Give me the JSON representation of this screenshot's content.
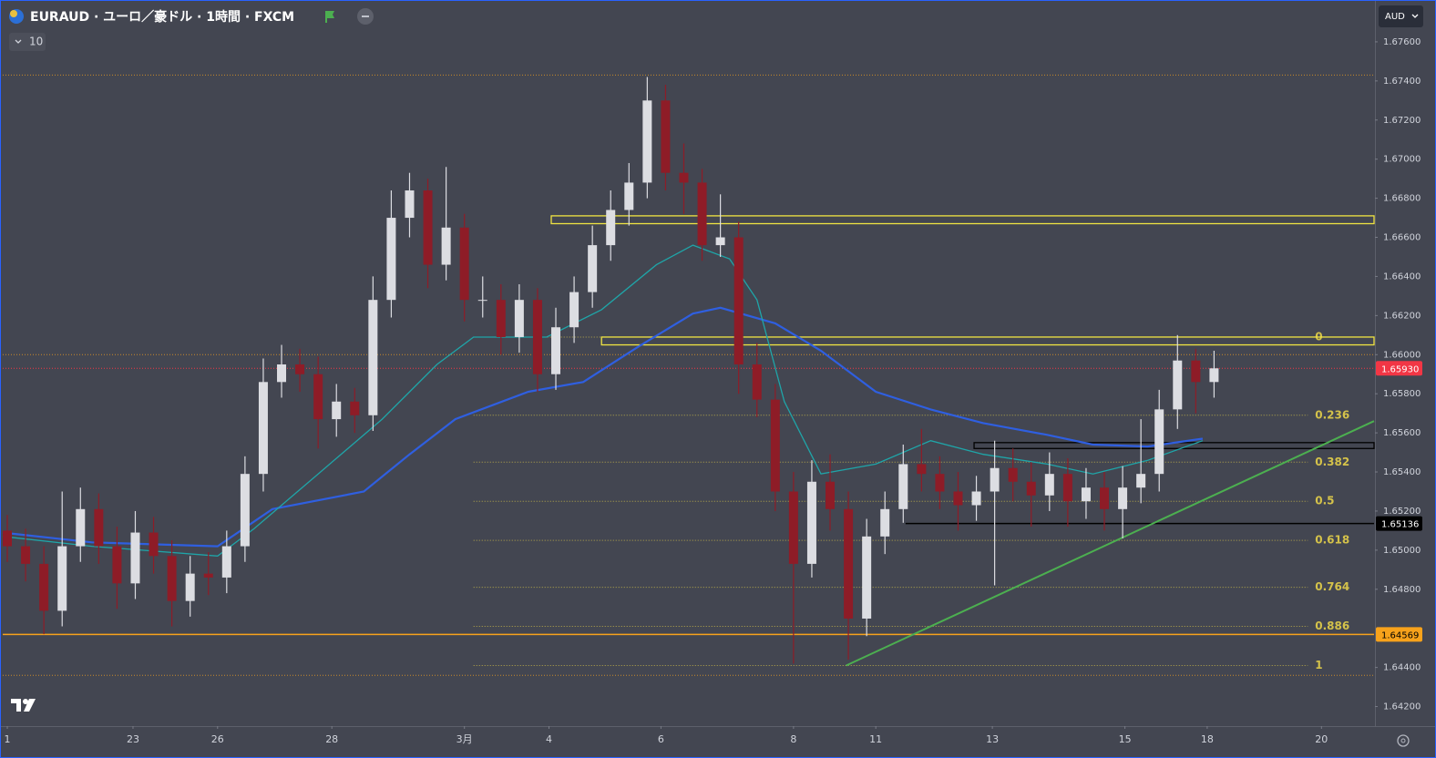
{
  "header": {
    "title": "EURAUD · ユーロ／豪ドル · 1時間 · FXCM",
    "indicator_count": "10",
    "currency": "AUD"
  },
  "chart_data": {
    "type": "candlestick",
    "xlim": [
      0,
      600
    ],
    "ylim": [
      1.641,
      1.678
    ],
    "xticks": [
      {
        "value": 2,
        "label": "1"
      },
      {
        "value": 57,
        "label": "23"
      },
      {
        "value": 94,
        "label": "26"
      },
      {
        "value": 144,
        "label": "28"
      },
      {
        "value": 202,
        "label": "3月"
      },
      {
        "value": 239,
        "label": "4"
      },
      {
        "value": 288,
        "label": "6"
      },
      {
        "value": 346,
        "label": "8"
      },
      {
        "value": 382,
        "label": "11"
      },
      {
        "value": 433,
        "label": "13"
      },
      {
        "value": 491,
        "label": "15"
      },
      {
        "value": 527,
        "label": "18"
      },
      {
        "value": 577,
        "label": "20"
      }
    ],
    "yticks": [
      {
        "value": 1.642,
        "label": "1.64200"
      },
      {
        "value": 1.644,
        "label": "1.64400"
      },
      {
        "value": 1.648,
        "label": "1.64800"
      },
      {
        "value": 1.65,
        "label": "1.65000"
      },
      {
        "value": 1.652,
        "label": "1.65200"
      },
      {
        "value": 1.654,
        "label": "1.65400"
      },
      {
        "value": 1.656,
        "label": "1.65600"
      },
      {
        "value": 1.658,
        "label": "1.65800"
      },
      {
        "value": 1.66,
        "label": "1.66000"
      },
      {
        "value": 1.662,
        "label": "1.66200"
      },
      {
        "value": 1.664,
        "label": "1.66400"
      },
      {
        "value": 1.666,
        "label": "1.66600"
      },
      {
        "value": 1.668,
        "label": "1.66800"
      },
      {
        "value": 1.67,
        "label": "1.67000"
      },
      {
        "value": 1.672,
        "label": "1.67200"
      },
      {
        "value": 1.674,
        "label": "1.67400"
      },
      {
        "value": 1.676,
        "label": "1.67600"
      }
    ],
    "up_color": "#dcdde2",
    "down_color": "#8e1c27",
    "x": [
      2,
      10,
      18,
      26,
      34,
      42,
      50,
      58,
      66,
      74,
      82,
      90,
      98,
      106,
      114,
      122,
      130,
      138,
      146,
      154,
      162,
      170,
      178,
      186,
      194,
      202,
      210,
      218,
      226,
      234,
      242,
      250,
      258,
      266,
      274,
      282,
      290,
      298,
      306,
      314,
      322,
      330,
      338,
      346,
      354,
      362,
      370,
      378,
      386,
      394,
      402,
      410,
      418,
      426,
      434,
      442,
      450,
      458,
      466,
      474,
      482,
      490,
      498,
      506,
      514,
      522,
      530
    ],
    "open": [
      1.651,
      1.6502,
      1.6493,
      1.6469,
      1.6502,
      1.6521,
      1.6502,
      1.6483,
      1.6509,
      1.6497,
      1.6474,
      1.6488,
      1.6486,
      1.6502,
      1.6539,
      1.6586,
      1.6595,
      1.659,
      1.6567,
      1.6576,
      1.6569,
      1.6628,
      1.667,
      1.6684,
      1.6646,
      1.6665,
      1.6628,
      1.6628,
      1.6609,
      1.6628,
      1.659,
      1.6614,
      1.6632,
      1.6656,
      1.6674,
      1.6688,
      1.673,
      1.6693,
      1.6688,
      1.6656,
      1.666,
      1.6595,
      1.6577,
      1.653,
      1.6493,
      1.6535,
      1.6521,
      1.6465,
      1.6507,
      1.6521,
      1.6544,
      1.6539,
      1.653,
      1.6523,
      1.653,
      1.6542,
      1.6535,
      1.6528,
      1.6539,
      1.6525,
      1.6532,
      1.6521,
      1.6532,
      1.6539,
      1.6572,
      1.6597,
      1.6586
    ],
    "high": [
      1.6518,
      1.6511,
      1.6502,
      1.653,
      1.6532,
      1.6529,
      1.6512,
      1.652,
      1.6517,
      1.6505,
      1.6497,
      1.6499,
      1.651,
      1.6548,
      1.6598,
      1.6605,
      1.6603,
      1.6599,
      1.6585,
      1.6583,
      1.664,
      1.6684,
      1.6693,
      1.669,
      1.6696,
      1.6672,
      1.664,
      1.6636,
      1.6636,
      1.6634,
      1.6624,
      1.664,
      1.6666,
      1.6684,
      1.6698,
      1.6742,
      1.6738,
      1.6708,
      1.6695,
      1.6682,
      1.6668,
      1.6606,
      1.6585,
      1.654,
      1.6546,
      1.6549,
      1.653,
      1.6516,
      1.653,
      1.6554,
      1.6562,
      1.6548,
      1.654,
      1.6538,
      1.6556,
      1.6552,
      1.6545,
      1.655,
      1.6547,
      1.6542,
      1.654,
      1.6543,
      1.6567,
      1.6582,
      1.661,
      1.6603,
      1.6602
    ],
    "low": [
      1.6494,
      1.6484,
      1.6457,
      1.6461,
      1.6494,
      1.6493,
      1.647,
      1.6475,
      1.6488,
      1.6461,
      1.6466,
      1.6477,
      1.6478,
      1.6494,
      1.653,
      1.6578,
      1.6581,
      1.6552,
      1.6558,
      1.656,
      1.6561,
      1.6619,
      1.666,
      1.6634,
      1.6638,
      1.6617,
      1.6619,
      1.66,
      1.6601,
      1.6581,
      1.6582,
      1.6606,
      1.6624,
      1.6648,
      1.6666,
      1.668,
      1.6684,
      1.6672,
      1.6648,
      1.665,
      1.658,
      1.6568,
      1.652,
      1.6442,
      1.6486,
      1.651,
      1.6444,
      1.6456,
      1.6498,
      1.6514,
      1.653,
      1.6521,
      1.651,
      1.6515,
      1.6482,
      1.6525,
      1.6512,
      1.652,
      1.6512,
      1.6516,
      1.651,
      1.6506,
      1.6524,
      1.653,
      1.6562,
      1.657,
      1.6578
    ],
    "close": [
      1.6502,
      1.6493,
      1.6469,
      1.6502,
      1.6521,
      1.6502,
      1.6483,
      1.6509,
      1.6497,
      1.6474,
      1.6488,
      1.6486,
      1.6502,
      1.6539,
      1.6586,
      1.6595,
      1.659,
      1.6567,
      1.6576,
      1.6569,
      1.6628,
      1.667,
      1.6684,
      1.6646,
      1.6665,
      1.6628,
      1.6628,
      1.6609,
      1.6628,
      1.659,
      1.6614,
      1.6632,
      1.6656,
      1.6674,
      1.6688,
      1.673,
      1.6693,
      1.6688,
      1.6656,
      1.666,
      1.6595,
      1.6577,
      1.653,
      1.6493,
      1.6535,
      1.6521,
      1.6465,
      1.6507,
      1.6521,
      1.6544,
      1.6539,
      1.653,
      1.6523,
      1.653,
      1.6542,
      1.6535,
      1.6528,
      1.6539,
      1.6525,
      1.6532,
      1.6521,
      1.6532,
      1.6539,
      1.6572,
      1.6597,
      1.6586,
      1.6593
    ],
    "series": [
      {
        "color": "#2f5fe0",
        "x": [
          0,
          39,
          94,
          118,
          158,
          178,
          198,
          230,
          254,
          278,
          302,
          314,
          338,
          358,
          382,
          406,
          429,
          457,
          477,
          501,
          525
        ],
        "values": [
          1.6509,
          1.6504,
          1.6502,
          1.6521,
          1.653,
          1.6549,
          1.6567,
          1.6581,
          1.6586,
          1.6604,
          1.6621,
          1.6624,
          1.6616,
          1.6602,
          1.6581,
          1.6572,
          1.6565,
          1.6559,
          1.6554,
          1.6553,
          1.6557
        ]
      },
      {
        "color": "#1fa5a8",
        "x": [
          0,
          39,
          94,
          110,
          138,
          166,
          190,
          206,
          238,
          262,
          286,
          302,
          318,
          330,
          342,
          358,
          382,
          406,
          429,
          457,
          477,
          501,
          525
        ],
        "values": [
          1.6507,
          1.6502,
          1.6497,
          1.6511,
          1.6539,
          1.6567,
          1.6595,
          1.6609,
          1.6609,
          1.6623,
          1.6646,
          1.6656,
          1.6649,
          1.6628,
          1.6576,
          1.6539,
          1.6544,
          1.6556,
          1.6549,
          1.6544,
          1.6539,
          1.6546,
          1.6556
        ]
      }
    ],
    "dotted_levels": [
      {
        "value": 1.6743,
        "color": "#c98a2a"
      },
      {
        "value": 1.66,
        "color": "#c98a2a"
      },
      {
        "value": 1.6436,
        "color": "#c98a2a"
      }
    ],
    "zones": [
      {
        "from": 240,
        "top": 1.6671,
        "bottom": 1.6667,
        "color": "#f0e442"
      },
      {
        "from": 262,
        "top": 1.6609,
        "bottom": 1.6605,
        "color": "#f0e442"
      },
      {
        "from": 425,
        "top": 1.6555,
        "bottom": 1.6552,
        "color": "#000000"
      }
    ],
    "fib": {
      "from": 206,
      "to": 571,
      "color": "#d4c24a",
      "levels": [
        {
          "ratio": 0,
          "value": 1.6609
        },
        {
          "ratio": 0.236,
          "value": 1.6569
        },
        {
          "ratio": 0.382,
          "value": 1.6545
        },
        {
          "ratio": 0.5,
          "value": 1.6525
        },
        {
          "ratio": 0.618,
          "value": 1.6505
        },
        {
          "ratio": 0.764,
          "value": 1.6481
        },
        {
          "ratio": 0.886,
          "value": 1.6461
        },
        {
          "ratio": 1,
          "value": 1.6441
        }
      ]
    },
    "trendline": {
      "x": [
        369,
        600
      ],
      "values": [
        1.6441,
        1.6566
      ],
      "color": "#4caf50"
    },
    "price_lines": [
      {
        "value": 1.6593,
        "label": "1.65930",
        "from": 0,
        "style": "dotted",
        "color": "#f23645",
        "text_color": "#ffffff"
      },
      {
        "value": 1.65136,
        "label": "1.65136",
        "from": 395,
        "style": "solid",
        "color": "#000000",
        "text_color": "#ffffff"
      },
      {
        "value": 1.64569,
        "label": "1.64569",
        "from": 0,
        "style": "solid",
        "color": "#f7a21b",
        "text_color": "#000000"
      }
    ]
  }
}
